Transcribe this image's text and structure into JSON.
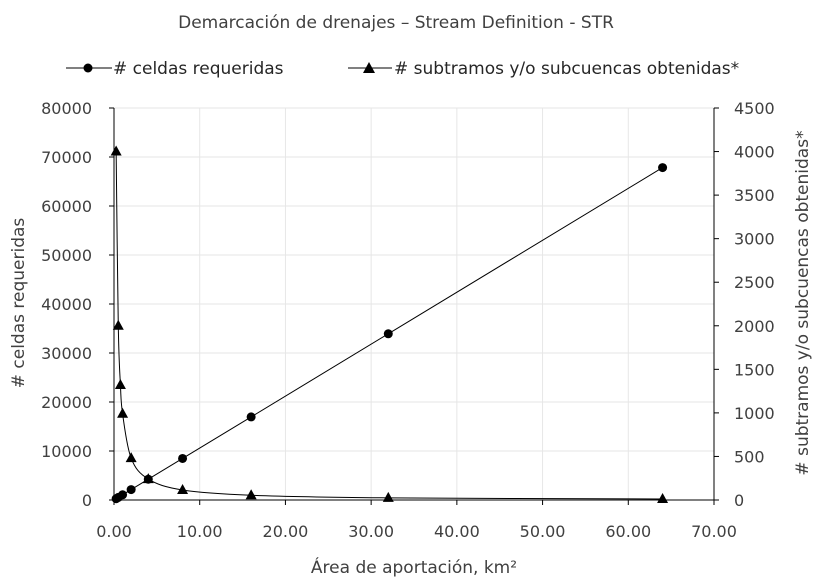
{
  "chart_data": {
    "type": "scatter",
    "title": "Demarcación de drenajes – Stream Definition - STR",
    "xlabel": "Área de aportación, km²",
    "ylabel": "# celdas requeridas",
    "y2label": "# subtramos y/o subcuencas obtenidas*",
    "xlim": [
      0,
      70
    ],
    "ylim": [
      0,
      80000
    ],
    "y2lim": [
      0,
      4500
    ],
    "x_ticks": [
      "0.00",
      "10.00",
      "20.00",
      "30.00",
      "40.00",
      "50.00",
      "60.00",
      "70.00"
    ],
    "y_ticks": [
      "0",
      "10000",
      "20000",
      "30000",
      "40000",
      "50000",
      "60000",
      "70000",
      "80000"
    ],
    "y2_ticks": [
      "0",
      "500",
      "1000",
      "1500",
      "2000",
      "2500",
      "3000",
      "3500",
      "4000",
      "4500"
    ],
    "grid": true,
    "legend_position": "top",
    "series": [
      {
        "name": "# celdas requeridas",
        "axis": "left",
        "marker": "circle",
        "color": "#000000",
        "x": [
          0.25,
          0.5,
          1,
          2,
          4,
          8,
          16,
          32,
          64
        ],
        "y": [
          265,
          530,
          1060,
          2120,
          4240,
          8480,
          16960,
          33920,
          67840
        ]
      },
      {
        "name": "# subtramos y/o subcuencas obtenidas*",
        "axis": "right",
        "marker": "triangle",
        "color": "#000000",
        "x": [
          0.25,
          0.5,
          0.75,
          1,
          2,
          4,
          8,
          16,
          32,
          64
        ],
        "y": [
          4000,
          2000,
          1320,
          990,
          480,
          240,
          115,
          55,
          25,
          12
        ]
      }
    ]
  }
}
